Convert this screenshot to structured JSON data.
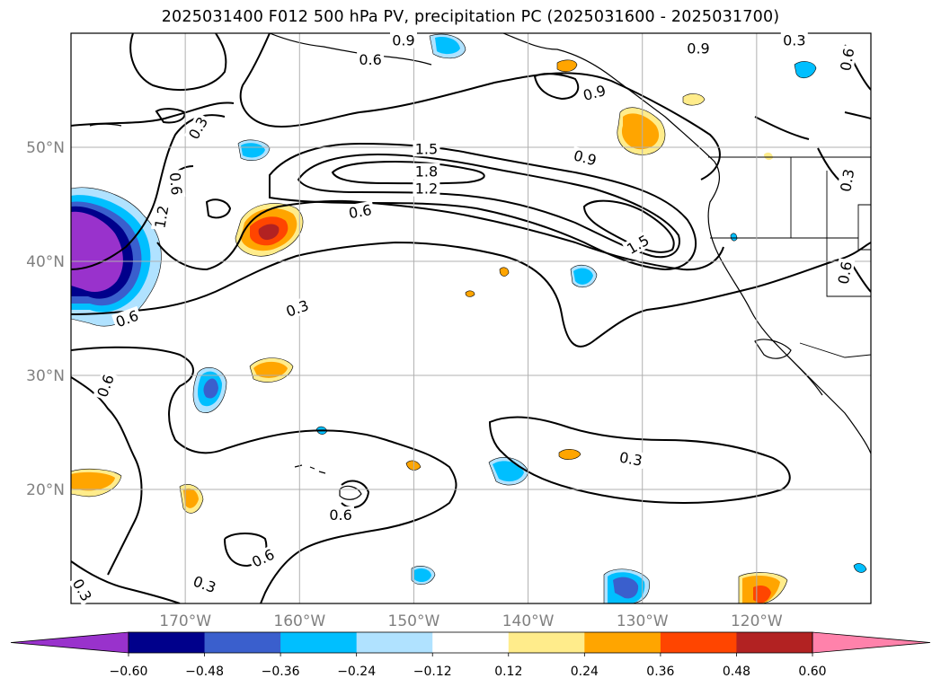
{
  "chart_data": {
    "type": "map-contour",
    "title": "2025031400 F012 500 hPa PV, precipitation PC (2025031600 - 2025031700)",
    "lon_range": [
      -180,
      -110
    ],
    "lat_range": [
      10,
      60
    ],
    "lon_ticks": [
      {
        "value": -170,
        "label": "170°W"
      },
      {
        "value": -160,
        "label": "160°W"
      },
      {
        "value": -150,
        "label": "150°W"
      },
      {
        "value": -140,
        "label": "140°W"
      },
      {
        "value": -130,
        "label": "130°W"
      },
      {
        "value": -120,
        "label": "120°W"
      }
    ],
    "lat_ticks": [
      {
        "value": 20,
        "label": "20°N"
      },
      {
        "value": 30,
        "label": "30°N"
      },
      {
        "value": 40,
        "label": "40°N"
      },
      {
        "value": 50,
        "label": "50°N"
      }
    ],
    "grid": true,
    "colorbar": {
      "levels": [
        "−0.60",
        "−0.48",
        "−0.36",
        "−0.24",
        "−0.12",
        "0.12",
        "0.24",
        "0.36",
        "0.48",
        "0.60"
      ],
      "colors": [
        "#9932cc",
        "#00008b",
        "#3a5fcd",
        "#00bfff",
        "#b0e2ff",
        "#ffffff",
        "#ffec8b",
        "#ffa500",
        "#ff4500",
        "#b22222",
        "#ff82ab"
      ]
    },
    "contour_labels": [
      {
        "text": "0.9",
        "lon": -150.9,
        "lat": 59.4,
        "rot": 0
      },
      {
        "text": "0.6",
        "lon": -153.8,
        "lat": 57.7,
        "rot": 0
      },
      {
        "text": "0.9",
        "lon": -125.1,
        "lat": 58.7,
        "rot": 0
      },
      {
        "text": "0.3",
        "lon": -116.7,
        "lat": 59.4,
        "rot": 0
      },
      {
        "text": "0.6",
        "lon": -112.1,
        "lat": 57.7,
        "rot": -80
      },
      {
        "text": "0.9",
        "lon": -134.2,
        "lat": 54.8,
        "rot": -15
      },
      {
        "text": "0.3",
        "lon": -168.9,
        "lat": 51.7,
        "rot": -60
      },
      {
        "text": "1.5",
        "lon": -148.9,
        "lat": 49.9,
        "rot": 0
      },
      {
        "text": "1.8",
        "lon": -148.9,
        "lat": 47.9,
        "rot": 0
      },
      {
        "text": "1.2",
        "lon": -148.9,
        "lat": 46.4,
        "rot": 0
      },
      {
        "text": "0.9",
        "lon": -135.0,
        "lat": 49.1,
        "rot": 15
      },
      {
        "text": "0.6",
        "lon": -170.8,
        "lat": 46.8,
        "rot": 85
      },
      {
        "text": "1.2",
        "lon": -172.1,
        "lat": 43.9,
        "rot": -80
      },
      {
        "text": "0.6",
        "lon": -154.7,
        "lat": 44.4,
        "rot": -10
      },
      {
        "text": "1.5",
        "lon": -130.4,
        "lat": 41.5,
        "rot": -30
      },
      {
        "text": "0.3",
        "lon": -112.1,
        "lat": 47.1,
        "rot": -80
      },
      {
        "text": "0.6",
        "lon": -112.3,
        "lat": 39.0,
        "rot": -80
      },
      {
        "text": "0.3",
        "lon": -160.2,
        "lat": 35.9,
        "rot": -20
      },
      {
        "text": "0.6",
        "lon": -175.1,
        "lat": 35.0,
        "rot": -20
      },
      {
        "text": "0.6",
        "lon": -177.0,
        "lat": 29.1,
        "rot": -70
      },
      {
        "text": "0.3",
        "lon": -131.0,
        "lat": 22.7,
        "rot": 10
      },
      {
        "text": "0.6",
        "lon": -156.4,
        "lat": 17.8,
        "rot": 0
      },
      {
        "text": "0.6",
        "lon": -163.2,
        "lat": 14.0,
        "rot": -25
      },
      {
        "text": "0.3",
        "lon": -168.3,
        "lat": 11.7,
        "rot": 20
      },
      {
        "text": "0.3",
        "lon": -179.0,
        "lat": 11.2,
        "rot": 60
      }
    ]
  }
}
